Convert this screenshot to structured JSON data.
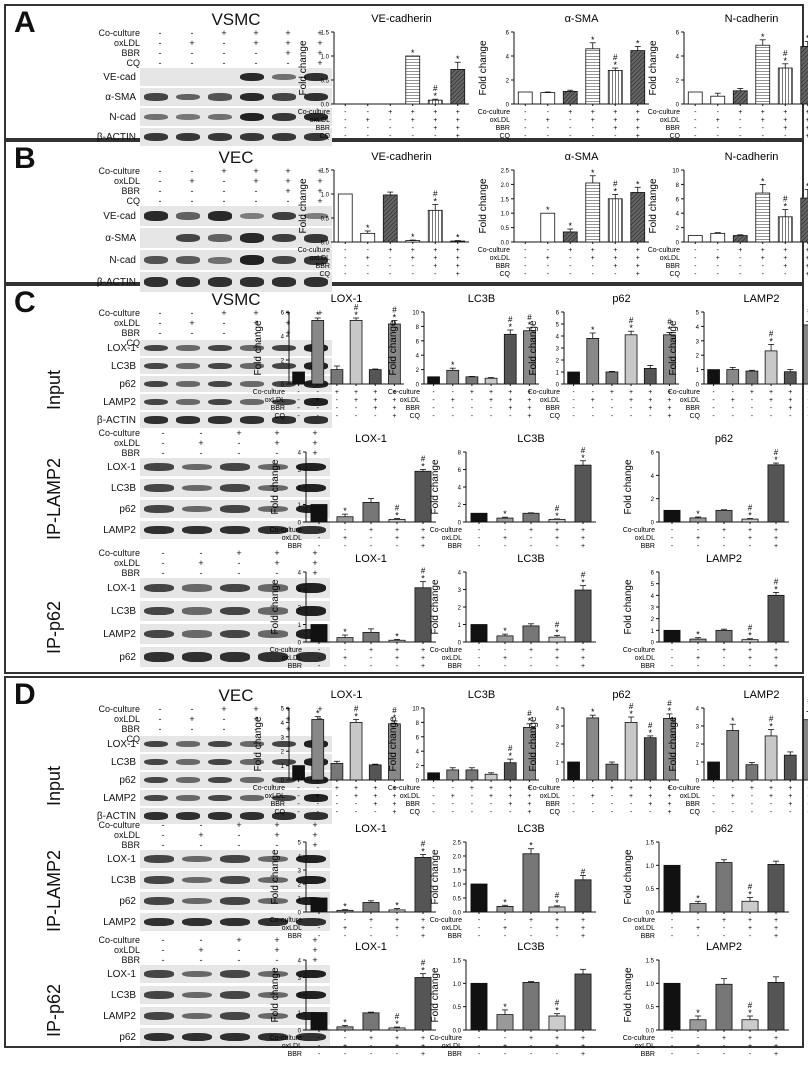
{
  "panels": [
    {
      "id": "A",
      "label": "A",
      "cell": "VSMC"
    },
    {
      "id": "B",
      "label": "B",
      "cell": "VEC"
    },
    {
      "id": "C",
      "label": "C",
      "cell": "VSMC"
    },
    {
      "id": "D",
      "label": "D",
      "cell": "VEC"
    }
  ],
  "conditions": {
    "labels4": [
      "Co-culture",
      "oxLDL",
      "BBR",
      "CQ"
    ],
    "signs6": [
      [
        "-",
        "-",
        "+",
        "+",
        "+",
        "+"
      ],
      [
        "-",
        "+",
        "-",
        "+",
        "+",
        "+"
      ],
      [
        "-",
        "-",
        "-",
        "-",
        "+",
        "+"
      ],
      [
        "-",
        "-",
        "-",
        "-",
        "-",
        "+"
      ]
    ],
    "labels3": [
      "Co-culture",
      "oxLDL",
      "BBR"
    ],
    "signs5": [
      [
        "-",
        "-",
        "+",
        "+",
        "+"
      ],
      [
        "-",
        "+",
        "-",
        "+",
        "+"
      ],
      [
        "-",
        "-",
        "-",
        "-",
        "+"
      ]
    ]
  },
  "blots": {
    "A": {
      "cell": "VSMC",
      "bands": [
        "VE-cad",
        "α-SMA",
        "N-cad",
        "β-ACTIN"
      ]
    },
    "B": {
      "cell": "VEC",
      "bands": [
        "VE-cad",
        "α-SMA",
        "N-cad",
        "β-ACTIN"
      ]
    },
    "C_input": {
      "cell": "VSMC",
      "side": "Input",
      "bands": [
        "LOX-1",
        "LC3B",
        "p62",
        "LAMP2",
        "β-ACTIN"
      ]
    },
    "C_iplamp2": {
      "side": "IP-LAMP2",
      "bands": [
        "LOX-1",
        "LC3B",
        "p62",
        "LAMP2"
      ]
    },
    "C_ipp62": {
      "side": "IP-p62",
      "bands": [
        "LOX-1",
        "LC3B",
        "LAMP2",
        "p62"
      ]
    },
    "D_input": {
      "cell": "VEC",
      "side": "Input",
      "bands": [
        "LOX-1",
        "LC3B",
        "p62",
        "LAMP2",
        "β-ACTIN"
      ]
    },
    "D_iplamp2": {
      "side": "IP-LAMP2",
      "bands": [
        "LOX-1",
        "LC3B",
        "p62",
        "LAMP2"
      ]
    },
    "D_ipp62": {
      "side": "IP-p62",
      "bands": [
        "LOX-1",
        "LC3B",
        "LAMP2",
        "p62"
      ]
    }
  },
  "chart_data": [
    {
      "id": "A1",
      "type": "bar",
      "title": "VE-cadherin",
      "ylabel": "Fold change",
      "ylim": [
        0,
        1.5
      ],
      "yticks": [
        "0.0",
        "0.5",
        "1.0",
        "1.5"
      ],
      "values": [
        0,
        0,
        0,
        1.0,
        0.08,
        0.72
      ],
      "errors": [
        0,
        0,
        0,
        0,
        0.02,
        0.15
      ],
      "marks": [
        "",
        "",
        "",
        "*",
        "*#",
        "*"
      ]
    },
    {
      "id": "A2",
      "type": "bar",
      "title": "α-SMA",
      "ylabel": "Fold change",
      "ylim": [
        0,
        6
      ],
      "yticks": [
        "0",
        "2",
        "4",
        "6"
      ],
      "values": [
        1.0,
        0.95,
        1.05,
        4.6,
        2.8,
        4.45
      ],
      "errors": [
        0,
        0.05,
        0.1,
        0.5,
        0.2,
        0.35
      ],
      "marks": [
        "",
        "",
        "",
        "*",
        "*#",
        "*"
      ]
    },
    {
      "id": "A3",
      "type": "bar",
      "title": "N-cadherin",
      "ylabel": "Fold change",
      "ylim": [
        0,
        6
      ],
      "yticks": [
        "0",
        "2",
        "4",
        "6"
      ],
      "values": [
        1.0,
        0.65,
        1.1,
        4.9,
        3.0,
        4.8
      ],
      "errors": [
        0,
        0.25,
        0.2,
        0.45,
        0.35,
        0.4
      ],
      "marks": [
        "",
        "",
        "",
        "*",
        "*#",
        "*"
      ]
    },
    {
      "id": "B1",
      "type": "bar",
      "title": "VE-cadherin",
      "ylabel": "Fold change",
      "ylim": [
        0,
        1.5
      ],
      "yticks": [
        "0.0",
        "0.5",
        "1.0",
        "1.5"
      ],
      "values": [
        1.0,
        0.18,
        0.98,
        0.03,
        0.66,
        0.02
      ],
      "errors": [
        0,
        0.05,
        0.06,
        0.01,
        0.12,
        0.01
      ],
      "marks": [
        "",
        "*",
        "",
        "*",
        "*#",
        "*"
      ]
    },
    {
      "id": "B2",
      "type": "bar",
      "title": "α-SMA",
      "ylabel": "Fold change",
      "ylim": [
        0,
        2.5
      ],
      "yticks": [
        "0.0",
        "0.5",
        "1.0",
        "1.5",
        "2.0",
        "2.5"
      ],
      "values": [
        0,
        1.0,
        0.35,
        2.05,
        1.5,
        1.72
      ],
      "errors": [
        0,
        0,
        0.1,
        0.25,
        0.15,
        0.18
      ],
      "marks": [
        "",
        "*",
        "*",
        "*",
        "*#",
        "*"
      ]
    },
    {
      "id": "B3",
      "type": "bar",
      "title": "N-cadherin",
      "ylabel": "Fold change",
      "ylim": [
        0,
        10
      ],
      "yticks": [
        "0",
        "2",
        "4",
        "6",
        "8",
        "10"
      ],
      "values": [
        0.9,
        1.2,
        0.9,
        6.8,
        3.5,
        6.1
      ],
      "errors": [
        0,
        0.1,
        0.1,
        1.2,
        1.0,
        1.2
      ],
      "marks": [
        "",
        "",
        "",
        "*",
        "*#",
        "*"
      ]
    },
    {
      "id": "C1",
      "type": "bar",
      "title": "LOX-1",
      "ylabel": "Fold change",
      "ylim": [
        0,
        6
      ],
      "yticks": [
        "0",
        "2",
        "4",
        "6"
      ],
      "values": [
        1.0,
        5.3,
        1.2,
        5.3,
        1.2,
        5.0
      ],
      "errors": [
        0,
        0.2,
        0.3,
        0.2,
        0.05,
        0.3
      ],
      "marks": [
        "",
        "*",
        "",
        "*#",
        "",
        "*#"
      ]
    },
    {
      "id": "C2",
      "type": "bar",
      "title": "LC3B",
      "ylabel": "Fold change",
      "ylim": [
        0,
        10
      ],
      "yticks": [
        "0",
        "2",
        "4",
        "6",
        "8",
        "10"
      ],
      "values": [
        1.0,
        1.9,
        1.0,
        0.8,
        6.9,
        7.4
      ],
      "errors": [
        0,
        0.3,
        0.05,
        0.1,
        0.6,
        0.4
      ],
      "marks": [
        "",
        "*",
        "",
        "",
        "*#",
        "*#"
      ]
    },
    {
      "id": "C3",
      "type": "bar",
      "title": "p62",
      "ylabel": "Fold change",
      "ylim": [
        0,
        6
      ],
      "yticks": [
        "0",
        "1",
        "2",
        "3",
        "4",
        "5",
        "6"
      ],
      "values": [
        1.0,
        3.8,
        1.0,
        4.1,
        1.3,
        4.1
      ],
      "errors": [
        0,
        0.45,
        0.05,
        0.3,
        0.25,
        0.2
      ],
      "marks": [
        "",
        "*",
        "",
        "*#",
        "",
        "*#"
      ]
    },
    {
      "id": "C4",
      "type": "bar",
      "title": "LAMP2",
      "ylabel": "Fold change",
      "ylim": [
        0,
        5
      ],
      "yticks": [
        "0",
        "1",
        "2",
        "3",
        "4",
        "5"
      ],
      "values": [
        1.0,
        1.0,
        0.9,
        2.3,
        0.85,
        4.1
      ],
      "errors": [
        0,
        0.15,
        0.05,
        0.45,
        0.15,
        0.25
      ],
      "marks": [
        "",
        "",
        "",
        "*#",
        "",
        "*#"
      ]
    },
    {
      "id": "C5",
      "type": "bar",
      "title": "LOX-1",
      "ylabel": "Fold change",
      "ylim": [
        0,
        4
      ],
      "yticks": [
        "0",
        "1",
        "2",
        "3",
        "4"
      ],
      "values": [
        1.0,
        0.3,
        1.12,
        0.15,
        2.9
      ],
      "errors": [
        0,
        0.15,
        0.22,
        0.05,
        0.1
      ],
      "marks": [
        "",
        "*",
        "",
        "*#",
        "*#"
      ]
    },
    {
      "id": "C6",
      "type": "bar",
      "title": "LC3B",
      "ylabel": "Fold change",
      "ylim": [
        0,
        8
      ],
      "yticks": [
        "0",
        "2",
        "4",
        "6",
        "8"
      ],
      "values": [
        1.0,
        0.45,
        1.0,
        0.3,
        6.5
      ],
      "errors": [
        0,
        0.1,
        0.05,
        0.05,
        0.5
      ],
      "marks": [
        "",
        "*",
        "",
        "*#",
        "*#"
      ]
    },
    {
      "id": "C7",
      "type": "bar",
      "title": "p62",
      "ylabel": "Fold change",
      "ylim": [
        0,
        6
      ],
      "yticks": [
        "0",
        "2",
        "4",
        "6"
      ],
      "values": [
        1.0,
        0.35,
        1.0,
        0.25,
        4.9
      ],
      "errors": [
        0,
        0.08,
        0.05,
        0.05,
        0.15
      ],
      "marks": [
        "",
        "*",
        "",
        "*#",
        "*#"
      ]
    },
    {
      "id": "C8",
      "type": "bar",
      "title": "LOX-1",
      "ylabel": "Fold change",
      "ylim": [
        0,
        4
      ],
      "yticks": [
        "0",
        "1",
        "2",
        "3",
        "4"
      ],
      "values": [
        1.0,
        0.25,
        0.55,
        0.1,
        3.1
      ],
      "errors": [
        0,
        0.15,
        0.2,
        0.05,
        0.35
      ],
      "marks": [
        "",
        "*",
        "",
        "*",
        "*#"
      ]
    },
    {
      "id": "C9",
      "type": "bar",
      "title": "LC3B",
      "ylabel": "Fold change",
      "ylim": [
        0,
        4
      ],
      "yticks": [
        "0",
        "1",
        "2",
        "3",
        "4"
      ],
      "values": [
        1.0,
        0.35,
        0.92,
        0.28,
        2.97
      ],
      "errors": [
        0,
        0.1,
        0.12,
        0.1,
        0.25
      ],
      "marks": [
        "",
        "*",
        "",
        "*#",
        "*#"
      ]
    },
    {
      "id": "C10",
      "type": "bar",
      "title": "LAMP2",
      "ylabel": "Fold change",
      "ylim": [
        0,
        6
      ],
      "yticks": [
        "0",
        "1",
        "2",
        "3",
        "4",
        "5",
        "6"
      ],
      "values": [
        1.0,
        0.25,
        1.0,
        0.2,
        4.0
      ],
      "errors": [
        0,
        0.12,
        0.1,
        0.08,
        0.25
      ],
      "marks": [
        "",
        "*",
        "",
        "*#",
        "*#"
      ]
    },
    {
      "id": "D1",
      "type": "bar",
      "title": "LOX-1",
      "ylabel": "Fold change",
      "ylim": [
        0,
        5
      ],
      "yticks": [
        "0",
        "1",
        "2",
        "3",
        "4",
        "5"
      ],
      "values": [
        1.0,
        4.2,
        1.15,
        4.0,
        1.05,
        3.9
      ],
      "errors": [
        0,
        0.2,
        0.15,
        0.2,
        0.05,
        0.2
      ],
      "marks": [
        "",
        "*",
        "",
        "*#",
        "",
        "*#"
      ]
    },
    {
      "id": "D2",
      "type": "bar",
      "title": "LC3B",
      "ylabel": "Fold change",
      "ylim": [
        0,
        10
      ],
      "yticks": [
        "0",
        "2",
        "4",
        "6",
        "8",
        "10"
      ],
      "values": [
        1.0,
        1.4,
        1.4,
        0.8,
        2.4,
        7.3
      ],
      "errors": [
        0,
        0.3,
        0.3,
        0.2,
        0.5,
        0.5
      ],
      "marks": [
        "",
        "",
        "",
        "",
        "*#",
        "*#"
      ]
    },
    {
      "id": "D3",
      "type": "bar",
      "title": "p62",
      "ylabel": "Fold change",
      "ylim": [
        0,
        4
      ],
      "yticks": [
        "0",
        "1",
        "2",
        "3",
        "4"
      ],
      "values": [
        1.0,
        3.45,
        0.88,
        3.2,
        2.35,
        3.42
      ],
      "errors": [
        0,
        0.15,
        0.12,
        0.3,
        0.1,
        0.25
      ],
      "marks": [
        "",
        "*",
        "",
        "*#",
        "*#",
        "*#"
      ]
    },
    {
      "id": "D4",
      "type": "bar",
      "title": "LAMP2",
      "ylabel": "Fold change",
      "ylim": [
        0,
        4
      ],
      "yticks": [
        "0",
        "1",
        "2",
        "3",
        "4"
      ],
      "values": [
        1.0,
        2.75,
        0.85,
        2.45,
        1.38,
        3.35
      ],
      "errors": [
        0,
        0.35,
        0.12,
        0.35,
        0.18,
        0.45
      ],
      "marks": [
        "",
        "*",
        "",
        "*#",
        "",
        "*#"
      ]
    },
    {
      "id": "D5",
      "type": "bar",
      "title": "LOX-1",
      "ylabel": "Fold change",
      "ylim": [
        0,
        5
      ],
      "yticks": [
        "0",
        "1",
        "2",
        "3",
        "4",
        "5"
      ],
      "values": [
        1.0,
        0.12,
        0.68,
        0.15,
        3.9
      ],
      "errors": [
        0,
        0.05,
        0.12,
        0.1,
        0.2
      ],
      "marks": [
        "",
        "*",
        "",
        "*",
        "*#"
      ]
    },
    {
      "id": "D6",
      "type": "bar",
      "title": "LC3B",
      "ylabel": "Fold change",
      "ylim": [
        0,
        2.5
      ],
      "yticks": [
        "0.0",
        "0.5",
        "1.0",
        "1.5",
        "2.0",
        "2.5"
      ],
      "values": [
        1.0,
        0.2,
        2.08,
        0.18,
        1.15
      ],
      "errors": [
        0,
        0.04,
        0.18,
        0.04,
        0.15
      ],
      "marks": [
        "",
        "*",
        "*",
        "*#",
        "#"
      ]
    },
    {
      "id": "D7",
      "type": "bar",
      "title": "p62",
      "ylabel": "Fold change",
      "ylim": [
        0,
        1.5
      ],
      "yticks": [
        "0.0",
        "0.5",
        "1.0",
        "1.5"
      ],
      "values": [
        1.0,
        0.18,
        1.06,
        0.23,
        1.02
      ],
      "errors": [
        0,
        0.05,
        0.06,
        0.08,
        0.07
      ],
      "marks": [
        "",
        "*",
        "",
        "*#",
        ""
      ]
    },
    {
      "id": "D8",
      "type": "bar",
      "title": "LOX-1",
      "ylabel": "Fold change",
      "ylim": [
        0,
        4
      ],
      "yticks": [
        "0",
        "1",
        "2",
        "3",
        "4"
      ],
      "values": [
        1.0,
        0.18,
        0.98,
        0.12,
        3.0
      ],
      "errors": [
        0,
        0.08,
        0.04,
        0.05,
        0.22
      ],
      "marks": [
        "",
        "*",
        "",
        "*#",
        "*#"
      ]
    },
    {
      "id": "D9",
      "type": "bar",
      "title": "LC3B",
      "ylabel": "Fold change",
      "ylim": [
        0,
        1.5
      ],
      "yticks": [
        "0.0",
        "0.5",
        "1.0",
        "1.5"
      ],
      "values": [
        1.0,
        0.33,
        1.02,
        0.3,
        1.2
      ],
      "errors": [
        0,
        0.1,
        0.02,
        0.05,
        0.1
      ],
      "marks": [
        "",
        "*",
        "",
        "*#",
        ""
      ]
    },
    {
      "id": "D10",
      "type": "bar",
      "title": "LAMP2",
      "ylabel": "Fold change",
      "ylim": [
        0,
        1.5
      ],
      "yticks": [
        "0.0",
        "0.5",
        "1.0",
        "1.5"
      ],
      "values": [
        1.0,
        0.22,
        0.98,
        0.22,
        1.02
      ],
      "errors": [
        0,
        0.08,
        0.12,
        0.08,
        0.12
      ],
      "marks": [
        "",
        "*",
        "",
        "*#",
        ""
      ]
    }
  ]
}
